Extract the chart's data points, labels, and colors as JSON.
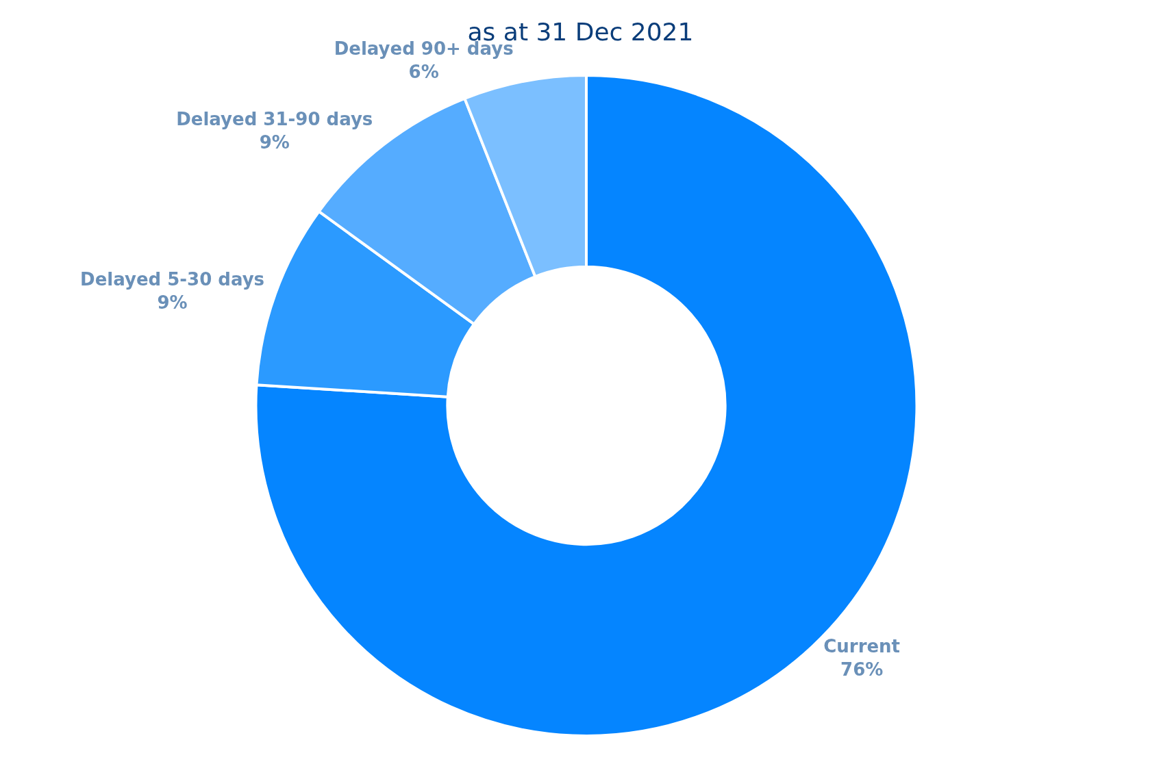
{
  "chart_data": {
    "type": "donut",
    "title": "as at 31 Dec 2021",
    "categories": [
      "Current",
      "Delayed 5-30 days",
      "Delayed 31-90 days",
      "Delayed 90+ days"
    ],
    "values": [
      76,
      9,
      9,
      6
    ],
    "value_labels": [
      "76%",
      "9%",
      "9%",
      "6%"
    ],
    "colors": [
      "#0585ff",
      "#2b9aff",
      "#55acff",
      "#7bbfff"
    ],
    "legend": false
  }
}
